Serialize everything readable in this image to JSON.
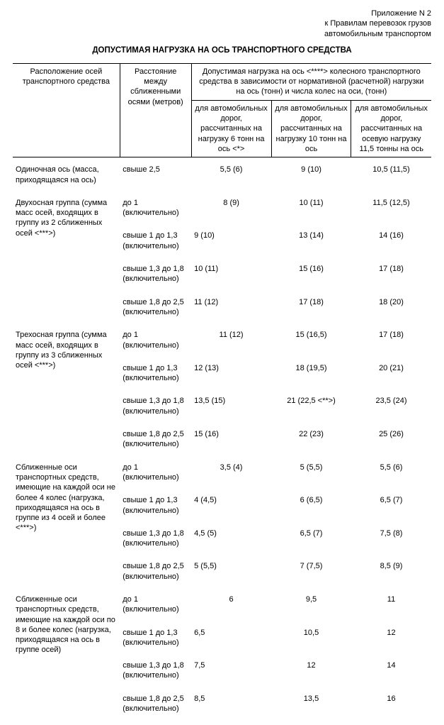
{
  "annex_line1": "Приложение N 2",
  "annex_line2": "к Правилам перевозок грузов",
  "annex_line3": "автомобильным транспортом",
  "title": "ДОПУСТИМАЯ НАГРУЗКА НА ОСЬ ТРАНСПОРТНОГО СРЕДСТВА",
  "headers": {
    "col1": "Расположение осей транспортного средства",
    "col2": "Расстояние между сближенными осями (метров)",
    "colGroup": "Допустимая нагрузка на ось <****> колесного транспортного средства в зависимости от нормативной (расчетной) нагрузки на ось (тонн) и числа колес на оси, (тонн)",
    "sub1": "для автомобильных дорог, рассчитанных на нагрузку 6 тонн на ось <*>",
    "sub2": "для автомобильных дорог, рассчитанных на нагрузку 10 тонн на ось",
    "sub3": "для автомобильных дорог, рассчитанных на осевую нагрузку 11,5 тонны на ось"
  },
  "groups": [
    {
      "label": "Одиночная ось (масса, приходящаяся на ось)",
      "rows": [
        {
          "dist": "свыше 2,5",
          "v1": "5,5 (6)",
          "v2": "9 (10)",
          "v3": "10,5 (11,5)"
        }
      ]
    },
    {
      "label": "Двухосная группа (сумма масс осей, входящих в группу из 2 сближенных осей <***>)",
      "rows": [
        {
          "dist": "до 1 (включительно)",
          "v1": "8 (9)",
          "v2": "10 (11)",
          "v3": "11,5 (12,5)"
        },
        {
          "dist": "свыше 1 до 1,3 (включительно)",
          "v1": "9 (10)",
          "v2": "13 (14)",
          "v3": "14 (16)"
        },
        {
          "dist": "свыше 1,3 до 1,8 (включительно)",
          "v1": "10 (11)",
          "v2": "15 (16)",
          "v3": "17 (18)"
        },
        {
          "dist": "свыше 1,8 до 2,5 (включительно)",
          "v1": "11 (12)",
          "v2": "17 (18)",
          "v3": "18 (20)"
        }
      ]
    },
    {
      "label": "Трехосная группа (сумма масс осей, входящих в группу из 3 сближенных осей <***>)",
      "rows": [
        {
          "dist": "до 1 (включительно)",
          "v1": "11 (12)",
          "v2": "15 (16,5)",
          "v3": "17 (18)"
        },
        {
          "dist": "свыше 1 до 1,3 (включительно)",
          "v1": "12 (13)",
          "v2": "18 (19,5)",
          "v3": "20 (21)"
        },
        {
          "dist": "свыше 1,3 до 1,8 (включительно)",
          "v1": "13,5 (15)",
          "v2": "21 (22,5 <**>)",
          "v3": "23,5 (24)"
        },
        {
          "dist": "свыше 1,8 до 2,5 (включительно)",
          "v1": "15 (16)",
          "v2": "22 (23)",
          "v3": "25 (26)"
        }
      ]
    },
    {
      "label": "Сближенные оси транспортных средств, имеющие на каждой оси не более 4 колес (нагрузка, приходящаяся на ось в группе из 4 осей и более <***>)",
      "rows": [
        {
          "dist": "до 1 (включительно)",
          "v1": "3,5 (4)",
          "v2": "5 (5,5)",
          "v3": "5,5 (6)"
        },
        {
          "dist": "свыше 1 до 1,3 (включительно)",
          "v1": "4 (4,5)",
          "v2": "6 (6,5)",
          "v3": "6,5 (7)"
        },
        {
          "dist": "свыше 1,3 до 1,8 (включительно)",
          "v1": "4,5 (5)",
          "v2": "6,5 (7)",
          "v3": "7,5 (8)"
        },
        {
          "dist": "свыше 1,8 до 2,5 (включительно)",
          "v1": "5 (5,5)",
          "v2": "7 (7,5)",
          "v3": "8,5 (9)"
        }
      ]
    },
    {
      "label": "Сближенные оси транспортных средств, имеющие на каждой оси по 8 и более колес (нагрузка, приходящаяся на ось в группе осей)",
      "rows": [
        {
          "dist": "до 1 (включительно)",
          "v1": "6",
          "v2": "9,5",
          "v3": "11"
        },
        {
          "dist": "свыше 1 до 1,3 (включительно)",
          "v1": "6,5",
          "v2": "10,5",
          "v3": "12"
        },
        {
          "dist": "свыше 1,3 до 1,8 (включительно)",
          "v1": "7,5",
          "v2": "12",
          "v3": "14"
        },
        {
          "dist": "свыше 1,8 до 2,5 (включительно)",
          "v1": "8,5",
          "v2": "13,5",
          "v3": "16"
        }
      ]
    }
  ]
}
